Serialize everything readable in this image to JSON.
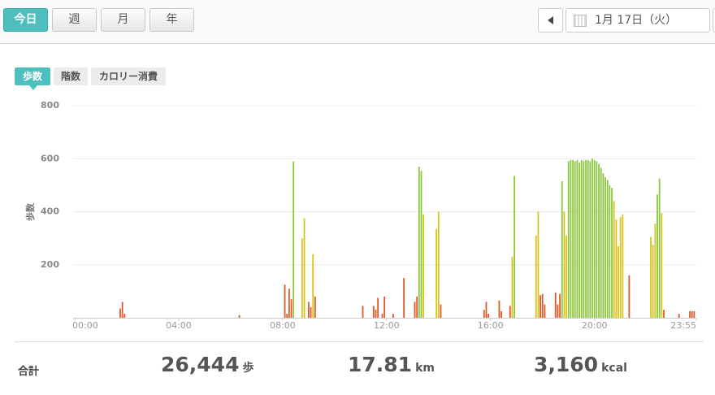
{
  "tabs": [
    "今日",
    "週",
    "月",
    "年"
  ],
  "active_tab": 0,
  "date": "1月 17日（火）",
  "metric_tabs": [
    "歩数",
    "階数",
    "カロリー消費"
  ],
  "active_metric": 0,
  "chart_data": {
    "type": "bar",
    "y_label": "歩数",
    "xlim": [
      0,
      1435
    ],
    "xticks": [
      {
        "value": 0,
        "label": "00:00"
      },
      {
        "value": 240,
        "label": "04:00"
      },
      {
        "value": 480,
        "label": "08:00"
      },
      {
        "value": 720,
        "label": "12:00"
      },
      {
        "value": 960,
        "label": "16:00"
      },
      {
        "value": 1200,
        "label": "20:00"
      },
      {
        "value": 1435,
        "label": "23:55"
      }
    ],
    "ylim": [
      0,
      800
    ],
    "yticks": [
      200,
      400,
      600,
      800
    ],
    "grid": true,
    "color_thresholds": [
      {
        "from": 0,
        "color": "#e0592a"
      },
      {
        "from": 200,
        "color": "#d8c31c"
      },
      {
        "from": 450,
        "color": "#8cc63f"
      }
    ],
    "x": [
      105,
      110,
      115,
      380,
      485,
      490,
      495,
      500,
      505,
      525,
      530,
      540,
      545,
      550,
      555,
      665,
      690,
      695,
      700,
      710,
      715,
      735,
      760,
      785,
      790,
      795,
      800,
      805,
      835,
      840,
      845,
      945,
      950,
      955,
      980,
      985,
      1005,
      1010,
      1015,
      1065,
      1070,
      1075,
      1080,
      1085,
      1110,
      1115,
      1120,
      1125,
      1130,
      1135,
      1140,
      1145,
      1150,
      1155,
      1160,
      1165,
      1170,
      1175,
      1180,
      1185,
      1190,
      1195,
      1200,
      1205,
      1210,
      1215,
      1220,
      1225,
      1230,
      1235,
      1240,
      1245,
      1250,
      1255,
      1260,
      1265,
      1280,
      1330,
      1335,
      1340,
      1345,
      1350,
      1355,
      1360,
      1395,
      1420,
      1425,
      1430
    ],
    "values": [
      35,
      60,
      15,
      10,
      125,
      15,
      110,
      70,
      590,
      300,
      375,
      60,
      40,
      240,
      80,
      45,
      45,
      30,
      75,
      15,
      80,
      15,
      150,
      60,
      80,
      570,
      555,
      390,
      335,
      400,
      50,
      30,
      60,
      15,
      65,
      25,
      45,
      230,
      535,
      310,
      400,
      85,
      90,
      50,
      95,
      50,
      90,
      515,
      400,
      310,
      590,
      595,
      595,
      590,
      595,
      585,
      595,
      590,
      595,
      595,
      590,
      600,
      595,
      590,
      580,
      565,
      545,
      530,
      520,
      500,
      490,
      440,
      370,
      270,
      380,
      390,
      160,
      305,
      275,
      355,
      465,
      525,
      395,
      30,
      15,
      25,
      25,
      25
    ]
  },
  "summary": {
    "label": "合計",
    "items": [
      {
        "value": "26,444",
        "unit": "歩"
      },
      {
        "value": "17.81",
        "unit": "km"
      },
      {
        "value": "3,160",
        "unit": "kcal"
      }
    ]
  }
}
